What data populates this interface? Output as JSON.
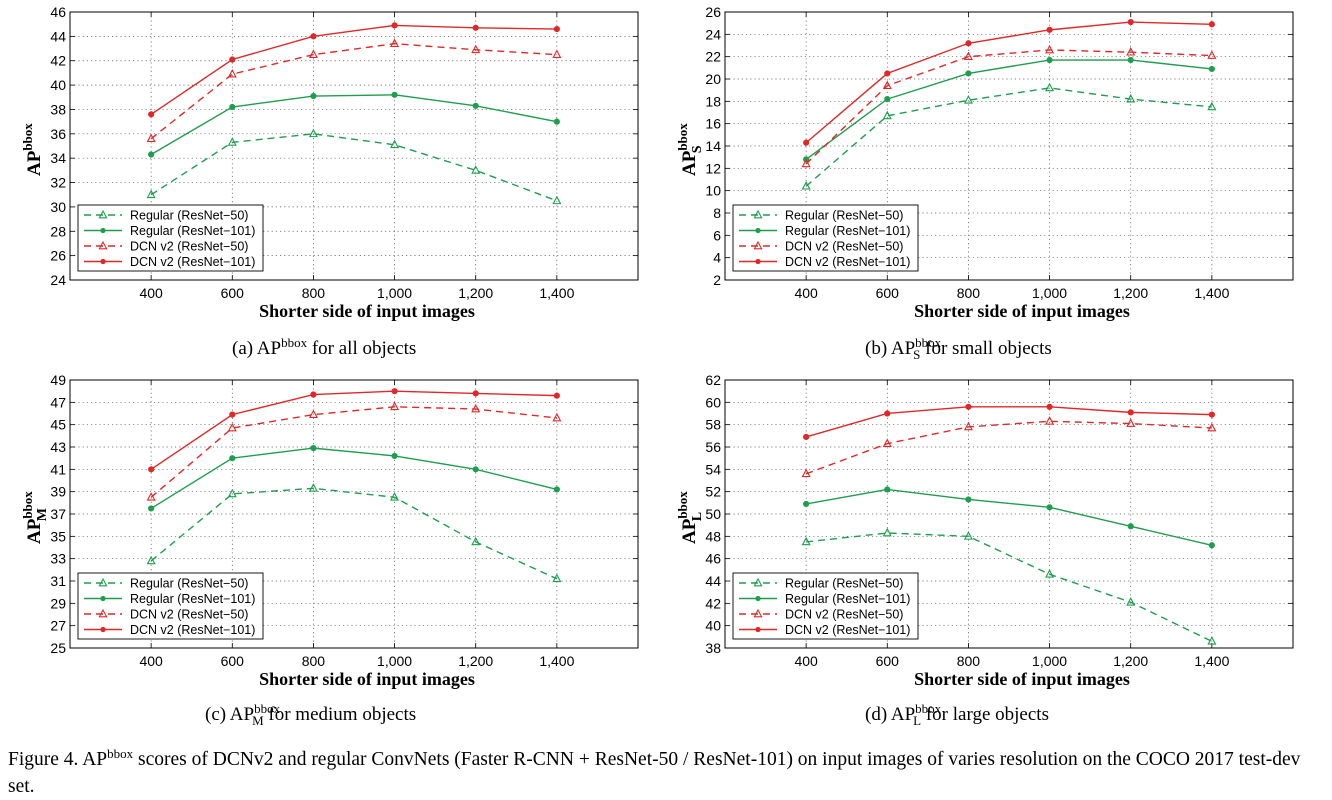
{
  "figure_caption": {
    "lead": "Figure 4. AP",
    "sup": "bbox",
    "rest": " scores of DCNv2 and regular ConvNets (Faster R-CNN + ResNet-50 / ResNet-101) on input images of varies resolution on the COCO 2017 test-dev set."
  },
  "colors": {
    "regular": "#1e9e4e",
    "dcn": "#e02828"
  },
  "chart_data": [
    {
      "id": "a",
      "type": "line",
      "caption": {
        "prefix": "(a)  AP",
        "sup": "bbox",
        "sub": "",
        "suffix": " for all objects"
      },
      "ylabel": {
        "main": "AP",
        "sup": "bbox",
        "sub": ""
      },
      "xlabel": "Shorter side of input images",
      "x": [
        400,
        600,
        800,
        1000,
        1200,
        1400
      ],
      "xtick_labels": [
        "400",
        "600",
        "800",
        "1,000",
        "1,200",
        "1,400"
      ],
      "xlim": [
        200,
        1600
      ],
      "ylim": [
        24,
        46
      ],
      "yticks": [
        24,
        26,
        28,
        30,
        32,
        34,
        36,
        38,
        40,
        42,
        44,
        46
      ],
      "grid": true,
      "legend_position": "lower-left",
      "series": [
        {
          "name": "Regular (ResNet−50)",
          "color": "regular",
          "style": "dashed",
          "marker": "triangle",
          "values": [
            31.0,
            35.3,
            36.0,
            35.1,
            33.0,
            30.5
          ]
        },
        {
          "name": "Regular (ResNet−101)",
          "color": "regular",
          "style": "solid",
          "marker": "dot",
          "values": [
            34.3,
            38.2,
            39.1,
            39.2,
            38.3,
            37.0
          ]
        },
        {
          "name": "DCN v2 (ResNet−50)",
          "color": "dcn",
          "style": "dashed",
          "marker": "triangle",
          "values": [
            35.6,
            40.9,
            42.5,
            43.4,
            42.9,
            42.5
          ]
        },
        {
          "name": "DCN v2 (ResNet−101)",
          "color": "dcn",
          "style": "solid",
          "marker": "dot",
          "values": [
            37.6,
            42.1,
            44.0,
            44.9,
            44.7,
            44.6
          ]
        }
      ]
    },
    {
      "id": "b",
      "type": "line",
      "caption": {
        "prefix": "(b)  AP",
        "sup": "bbox",
        "sub": "S",
        "suffix": " for small objects"
      },
      "ylabel": {
        "main": "AP",
        "sup": "bbox",
        "sub": "S"
      },
      "xlabel": "Shorter side of input images",
      "x": [
        400,
        600,
        800,
        1000,
        1200,
        1400
      ],
      "xtick_labels": [
        "400",
        "600",
        "800",
        "1,000",
        "1,200",
        "1,400"
      ],
      "xlim": [
        200,
        1600
      ],
      "ylim": [
        2,
        26
      ],
      "yticks": [
        2,
        4,
        6,
        8,
        10,
        12,
        14,
        16,
        18,
        20,
        22,
        24,
        26
      ],
      "grid": true,
      "legend_position": "lower-left",
      "series": [
        {
          "name": "Regular (ResNet−50)",
          "color": "regular",
          "style": "dashed",
          "marker": "triangle",
          "values": [
            10.4,
            16.7,
            18.1,
            19.2,
            18.2,
            17.5
          ]
        },
        {
          "name": "Regular (ResNet−101)",
          "color": "regular",
          "style": "solid",
          "marker": "dot",
          "values": [
            12.8,
            18.2,
            20.5,
            21.7,
            21.7,
            20.9
          ]
        },
        {
          "name": "DCN v2 (ResNet−50)",
          "color": "dcn",
          "style": "dashed",
          "marker": "triangle",
          "values": [
            12.4,
            19.4,
            22.0,
            22.6,
            22.4,
            22.1
          ]
        },
        {
          "name": "DCN v2 (ResNet−101)",
          "color": "dcn",
          "style": "solid",
          "marker": "dot",
          "values": [
            14.3,
            20.5,
            23.2,
            24.4,
            25.1,
            24.9
          ]
        }
      ]
    },
    {
      "id": "c",
      "type": "line",
      "caption": {
        "prefix": "(c)  AP",
        "sup": "bbox",
        "sub": "M",
        "suffix": " for medium objects"
      },
      "ylabel": {
        "main": "AP",
        "sup": "bbox",
        "sub": "M"
      },
      "xlabel": "Shorter side of input images",
      "x": [
        400,
        600,
        800,
        1000,
        1200,
        1400
      ],
      "xtick_labels": [
        "400",
        "600",
        "800",
        "1,000",
        "1,200",
        "1,400"
      ],
      "xlim": [
        200,
        1600
      ],
      "ylim": [
        25,
        49
      ],
      "yticks": [
        25,
        27,
        29,
        31,
        33,
        35,
        37,
        39,
        41,
        43,
        45,
        47,
        49
      ],
      "grid": true,
      "legend_position": "lower-left",
      "series": [
        {
          "name": "Regular (ResNet−50)",
          "color": "regular",
          "style": "dashed",
          "marker": "triangle",
          "values": [
            32.8,
            38.8,
            39.3,
            38.5,
            34.5,
            31.2
          ]
        },
        {
          "name": "Regular (ResNet−101)",
          "color": "regular",
          "style": "solid",
          "marker": "dot",
          "values": [
            37.5,
            42.0,
            42.9,
            42.2,
            41.0,
            39.2
          ]
        },
        {
          "name": "DCN v2 (ResNet−50)",
          "color": "dcn",
          "style": "dashed",
          "marker": "triangle",
          "values": [
            38.5,
            44.7,
            45.9,
            46.6,
            46.4,
            45.6
          ]
        },
        {
          "name": "DCN v2 (ResNet−101)",
          "color": "dcn",
          "style": "solid",
          "marker": "dot",
          "values": [
            41.0,
            45.9,
            47.7,
            48.0,
            47.8,
            47.6
          ]
        }
      ]
    },
    {
      "id": "d",
      "type": "line",
      "caption": {
        "prefix": "(d)  AP",
        "sup": "bbox",
        "sub": "L",
        "suffix": " for large objects"
      },
      "ylabel": {
        "main": "AP",
        "sup": "bbox",
        "sub": "L"
      },
      "xlabel": "Shorter side of input images",
      "x": [
        400,
        600,
        800,
        1000,
        1200,
        1400
      ],
      "xtick_labels": [
        "400",
        "600",
        "800",
        "1,000",
        "1,200",
        "1,400"
      ],
      "xlim": [
        200,
        1600
      ],
      "ylim": [
        38,
        62
      ],
      "yticks": [
        38,
        40,
        42,
        44,
        46,
        48,
        50,
        52,
        54,
        56,
        58,
        60,
        62
      ],
      "grid": true,
      "legend_position": "lower-left",
      "series": [
        {
          "name": "Regular (ResNet−50)",
          "color": "regular",
          "style": "dashed",
          "marker": "triangle",
          "values": [
            47.5,
            48.3,
            48.0,
            44.6,
            42.1,
            38.6
          ]
        },
        {
          "name": "Regular (ResNet−101)",
          "color": "regular",
          "style": "solid",
          "marker": "dot",
          "values": [
            50.9,
            52.2,
            51.3,
            50.6,
            48.9,
            47.2
          ]
        },
        {
          "name": "DCN v2 (ResNet−50)",
          "color": "dcn",
          "style": "dashed",
          "marker": "triangle",
          "values": [
            53.6,
            56.3,
            57.8,
            58.3,
            58.1,
            57.7
          ]
        },
        {
          "name": "DCN v2 (ResNet−101)",
          "color": "dcn",
          "style": "solid",
          "marker": "dot",
          "values": [
            56.9,
            59.0,
            59.6,
            59.6,
            59.1,
            58.9
          ]
        }
      ]
    }
  ]
}
